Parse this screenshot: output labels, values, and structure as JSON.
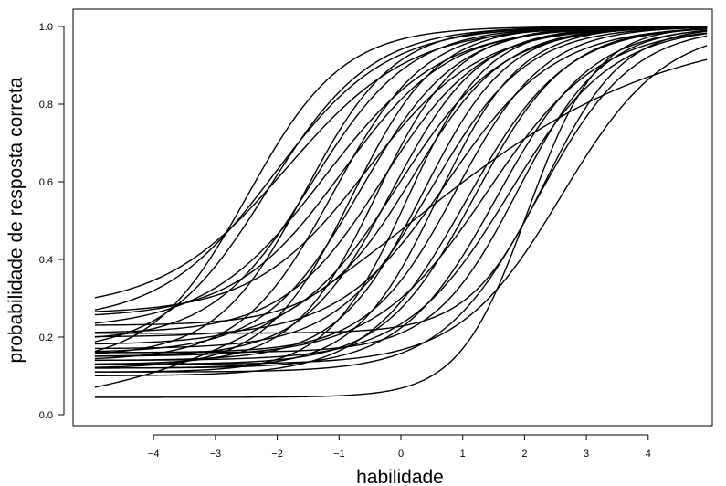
{
  "chart_data": {
    "type": "line",
    "title": "",
    "xlabel": "habilidade",
    "ylabel": "probabilidade de resposta correta",
    "xlim": [
      -5,
      5
    ],
    "ylim": [
      0,
      1
    ],
    "x_ticks": [
      -4,
      -3,
      -2,
      -1,
      0,
      1,
      2,
      3,
      4
    ],
    "x_tick_labels": [
      "−4",
      "−3",
      "−2",
      "−1",
      "0",
      "1",
      "2",
      "3",
      "4"
    ],
    "y_ticks": [
      0.0,
      0.2,
      0.4,
      0.6,
      0.8,
      1.0
    ],
    "y_tick_labels": [
      "0.0",
      "0.2",
      "0.4",
      "0.6",
      "0.8",
      "1.0"
    ],
    "grid": false,
    "legend": "none",
    "line_color": "#000000",
    "x_range": [
      -4.95,
      4.95
    ],
    "model": "3PL logistic: y = c + (1 - c) / (1 + exp(-a * (x - b)))",
    "series": [
      {
        "a": 1.3,
        "b": -2.48,
        "c": 0.13
      },
      {
        "a": 1.2,
        "b": -2.15,
        "c": 0.16
      },
      {
        "a": 1.1,
        "b": -2.05,
        "c": 0.24
      },
      {
        "a": 1.0,
        "b": -1.85,
        "c": 0.27
      },
      {
        "a": 1.4,
        "b": -1.55,
        "c": 0.15
      },
      {
        "a": 1.25,
        "b": -1.45,
        "c": 0.19
      },
      {
        "a": 1.05,
        "b": -1.25,
        "c": 0.22
      },
      {
        "a": 1.35,
        "b": -1.1,
        "c": 0.14
      },
      {
        "a": 1.15,
        "b": -0.95,
        "c": 0.25
      },
      {
        "a": 1.45,
        "b": -0.8,
        "c": 0.12
      },
      {
        "a": 1.3,
        "b": -0.65,
        "c": 0.16
      },
      {
        "a": 1.1,
        "b": -0.55,
        "c": 0.26
      },
      {
        "a": 1.5,
        "b": -0.4,
        "c": 0.13
      },
      {
        "a": 1.25,
        "b": -0.3,
        "c": 0.21
      },
      {
        "a": 1.4,
        "b": -0.15,
        "c": 0.15
      },
      {
        "a": 1.2,
        "b": -0.05,
        "c": 0.18
      },
      {
        "a": 1.55,
        "b": 0.1,
        "c": 0.11
      },
      {
        "a": 1.35,
        "b": 0.2,
        "c": 0.23
      },
      {
        "a": 1.45,
        "b": 0.35,
        "c": 0.14
      },
      {
        "a": 1.3,
        "b": 0.5,
        "c": 0.17
      },
      {
        "a": 1.5,
        "b": 0.6,
        "c": 0.12
      },
      {
        "a": 1.15,
        "b": 0.75,
        "c": 0.2
      },
      {
        "a": 1.4,
        "b": 0.9,
        "c": 0.16
      },
      {
        "a": 1.25,
        "b": 1.05,
        "c": 0.1
      },
      {
        "a": 1.35,
        "b": 1.2,
        "c": 0.13
      },
      {
        "a": 1.1,
        "b": 1.4,
        "c": 0.15
      },
      {
        "a": 1.3,
        "b": 1.55,
        "c": 0.12
      },
      {
        "a": 1.2,
        "b": 1.75,
        "c": 0.14
      },
      {
        "a": 1.45,
        "b": 1.9,
        "c": 0.16
      },
      {
        "a": 1.8,
        "b": 2.05,
        "c": 0.045
      },
      {
        "a": 1.3,
        "b": 2.2,
        "c": 0.11
      },
      {
        "a": 1.6,
        "b": 2.35,
        "c": 0.21
      },
      {
        "a": 1.2,
        "b": 2.6,
        "c": 0.13
      },
      {
        "a": 0.5,
        "b": 0.2,
        "c": 0.0
      }
    ]
  }
}
